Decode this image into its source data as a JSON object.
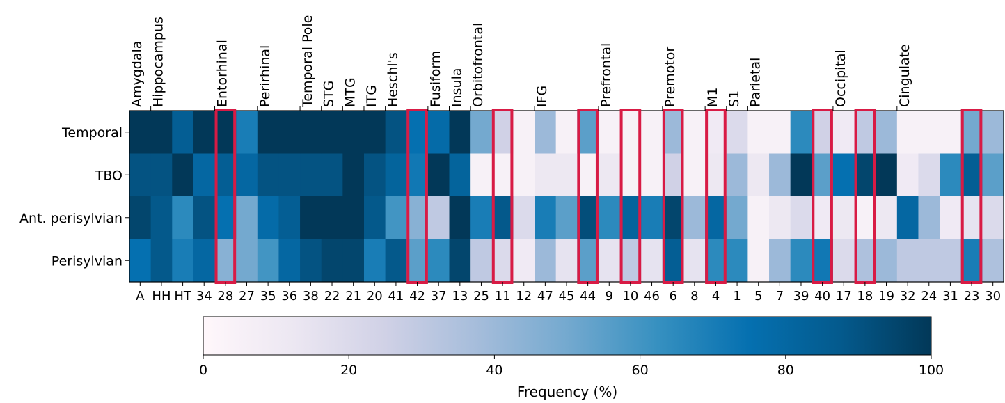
{
  "chart_data": {
    "type": "heatmap",
    "rows": [
      "Temporal",
      "TBO",
      "Ant. perisylvian",
      "Perisylvian"
    ],
    "columns": [
      "A",
      "HH",
      "HT",
      "34",
      "28",
      "27",
      "35",
      "36",
      "38",
      "22",
      "21",
      "20",
      "41",
      "42",
      "37",
      "13",
      "25",
      "11",
      "12",
      "47",
      "45",
      "44",
      "9",
      "10",
      "46",
      "6",
      "8",
      "4",
      "1",
      "5",
      "7",
      "39",
      "40",
      "17",
      "18",
      "19",
      "32",
      "24",
      "31",
      "23",
      "30"
    ],
    "values": [
      [
        100,
        100,
        85,
        100,
        100,
        70,
        100,
        100,
        100,
        100,
        100,
        100,
        90,
        75,
        78,
        100,
        50,
        25,
        5,
        40,
        5,
        55,
        5,
        5,
        5,
        40,
        5,
        10,
        20,
        5,
        5,
        65,
        25,
        10,
        30,
        40,
        5,
        5,
        5,
        50,
        40
      ],
      [
        90,
        90,
        100,
        80,
        85,
        80,
        90,
        90,
        90,
        90,
        100,
        90,
        82,
        72,
        100,
        82,
        5,
        5,
        5,
        12,
        12,
        5,
        12,
        5,
        5,
        25,
        5,
        12,
        40,
        12,
        40,
        100,
        55,
        75,
        95,
        100,
        10,
        20,
        65,
        85,
        55
      ],
      [
        95,
        88,
        65,
        90,
        75,
        50,
        78,
        85,
        100,
        100,
        100,
        88,
        60,
        45,
        30,
        100,
        70,
        88,
        20,
        70,
        55,
        92,
        65,
        82,
        70,
        95,
        40,
        80,
        50,
        5,
        12,
        20,
        10,
        12,
        5,
        12,
        80,
        40,
        10,
        15,
        20
      ],
      [
        75,
        88,
        70,
        80,
        45,
        50,
        60,
        80,
        90,
        95,
        95,
        70,
        88,
        55,
        65,
        95,
        30,
        20,
        10,
        40,
        15,
        55,
        15,
        30,
        15,
        85,
        15,
        65,
        65,
        5,
        40,
        65,
        72,
        20,
        35,
        40,
        30,
        30,
        30,
        70,
        35
      ]
    ],
    "region_labels": [
      {
        "label": "Amygdala",
        "start": 0,
        "end": 1
      },
      {
        "label": "Hippocampus",
        "start": 1,
        "end": 3
      },
      {
        "label": "Entorhinal",
        "start": 4,
        "end": 5
      },
      {
        "label": "Perirhinal",
        "start": 6,
        "end": 8
      },
      {
        "label": "Temporal Pole",
        "start": 8,
        "end": 9
      },
      {
        "label": "STG",
        "start": 9,
        "end": 10
      },
      {
        "label": "MTG",
        "start": 10,
        "end": 11
      },
      {
        "label": "ITG",
        "start": 11,
        "end": 12
      },
      {
        "label": "Heschl's",
        "start": 12,
        "end": 14
      },
      {
        "label": "Fusiform",
        "start": 14,
        "end": 15
      },
      {
        "label": "Insula",
        "start": 15,
        "end": 16
      },
      {
        "label": "Orbitofrontal",
        "start": 16,
        "end": 19
      },
      {
        "label": "IFG",
        "start": 19,
        "end": 22
      },
      {
        "label": "Prefrontal",
        "start": 22,
        "end": 25
      },
      {
        "label": "Premotor",
        "start": 25,
        "end": 27
      },
      {
        "label": "M1",
        "start": 27,
        "end": 28
      },
      {
        "label": "S1",
        "start": 28,
        "end": 29
      },
      {
        "label": "Parietal",
        "start": 29,
        "end": 33
      },
      {
        "label": "Occipital",
        "start": 33,
        "end": 36
      },
      {
        "label": "Cingulate",
        "start": 36,
        "end": 41
      }
    ],
    "highlighted_columns": [
      "28",
      "42",
      "11",
      "44",
      "10",
      "6",
      "4",
      "40",
      "18",
      "23"
    ],
    "highlight_color": "#d81b45",
    "colorbar": {
      "label": "Frequency (%)",
      "min": 0,
      "max": 100,
      "ticks": [
        0,
        20,
        40,
        60,
        80,
        100
      ],
      "colors": [
        "#fff7fb",
        "#ece7f2",
        "#d0d1e6",
        "#a6bddb",
        "#74a9cf",
        "#3690c0",
        "#0570b0",
        "#045a8d",
        "#023858"
      ]
    },
    "colormap": "PuBu",
    "grid": false
  }
}
